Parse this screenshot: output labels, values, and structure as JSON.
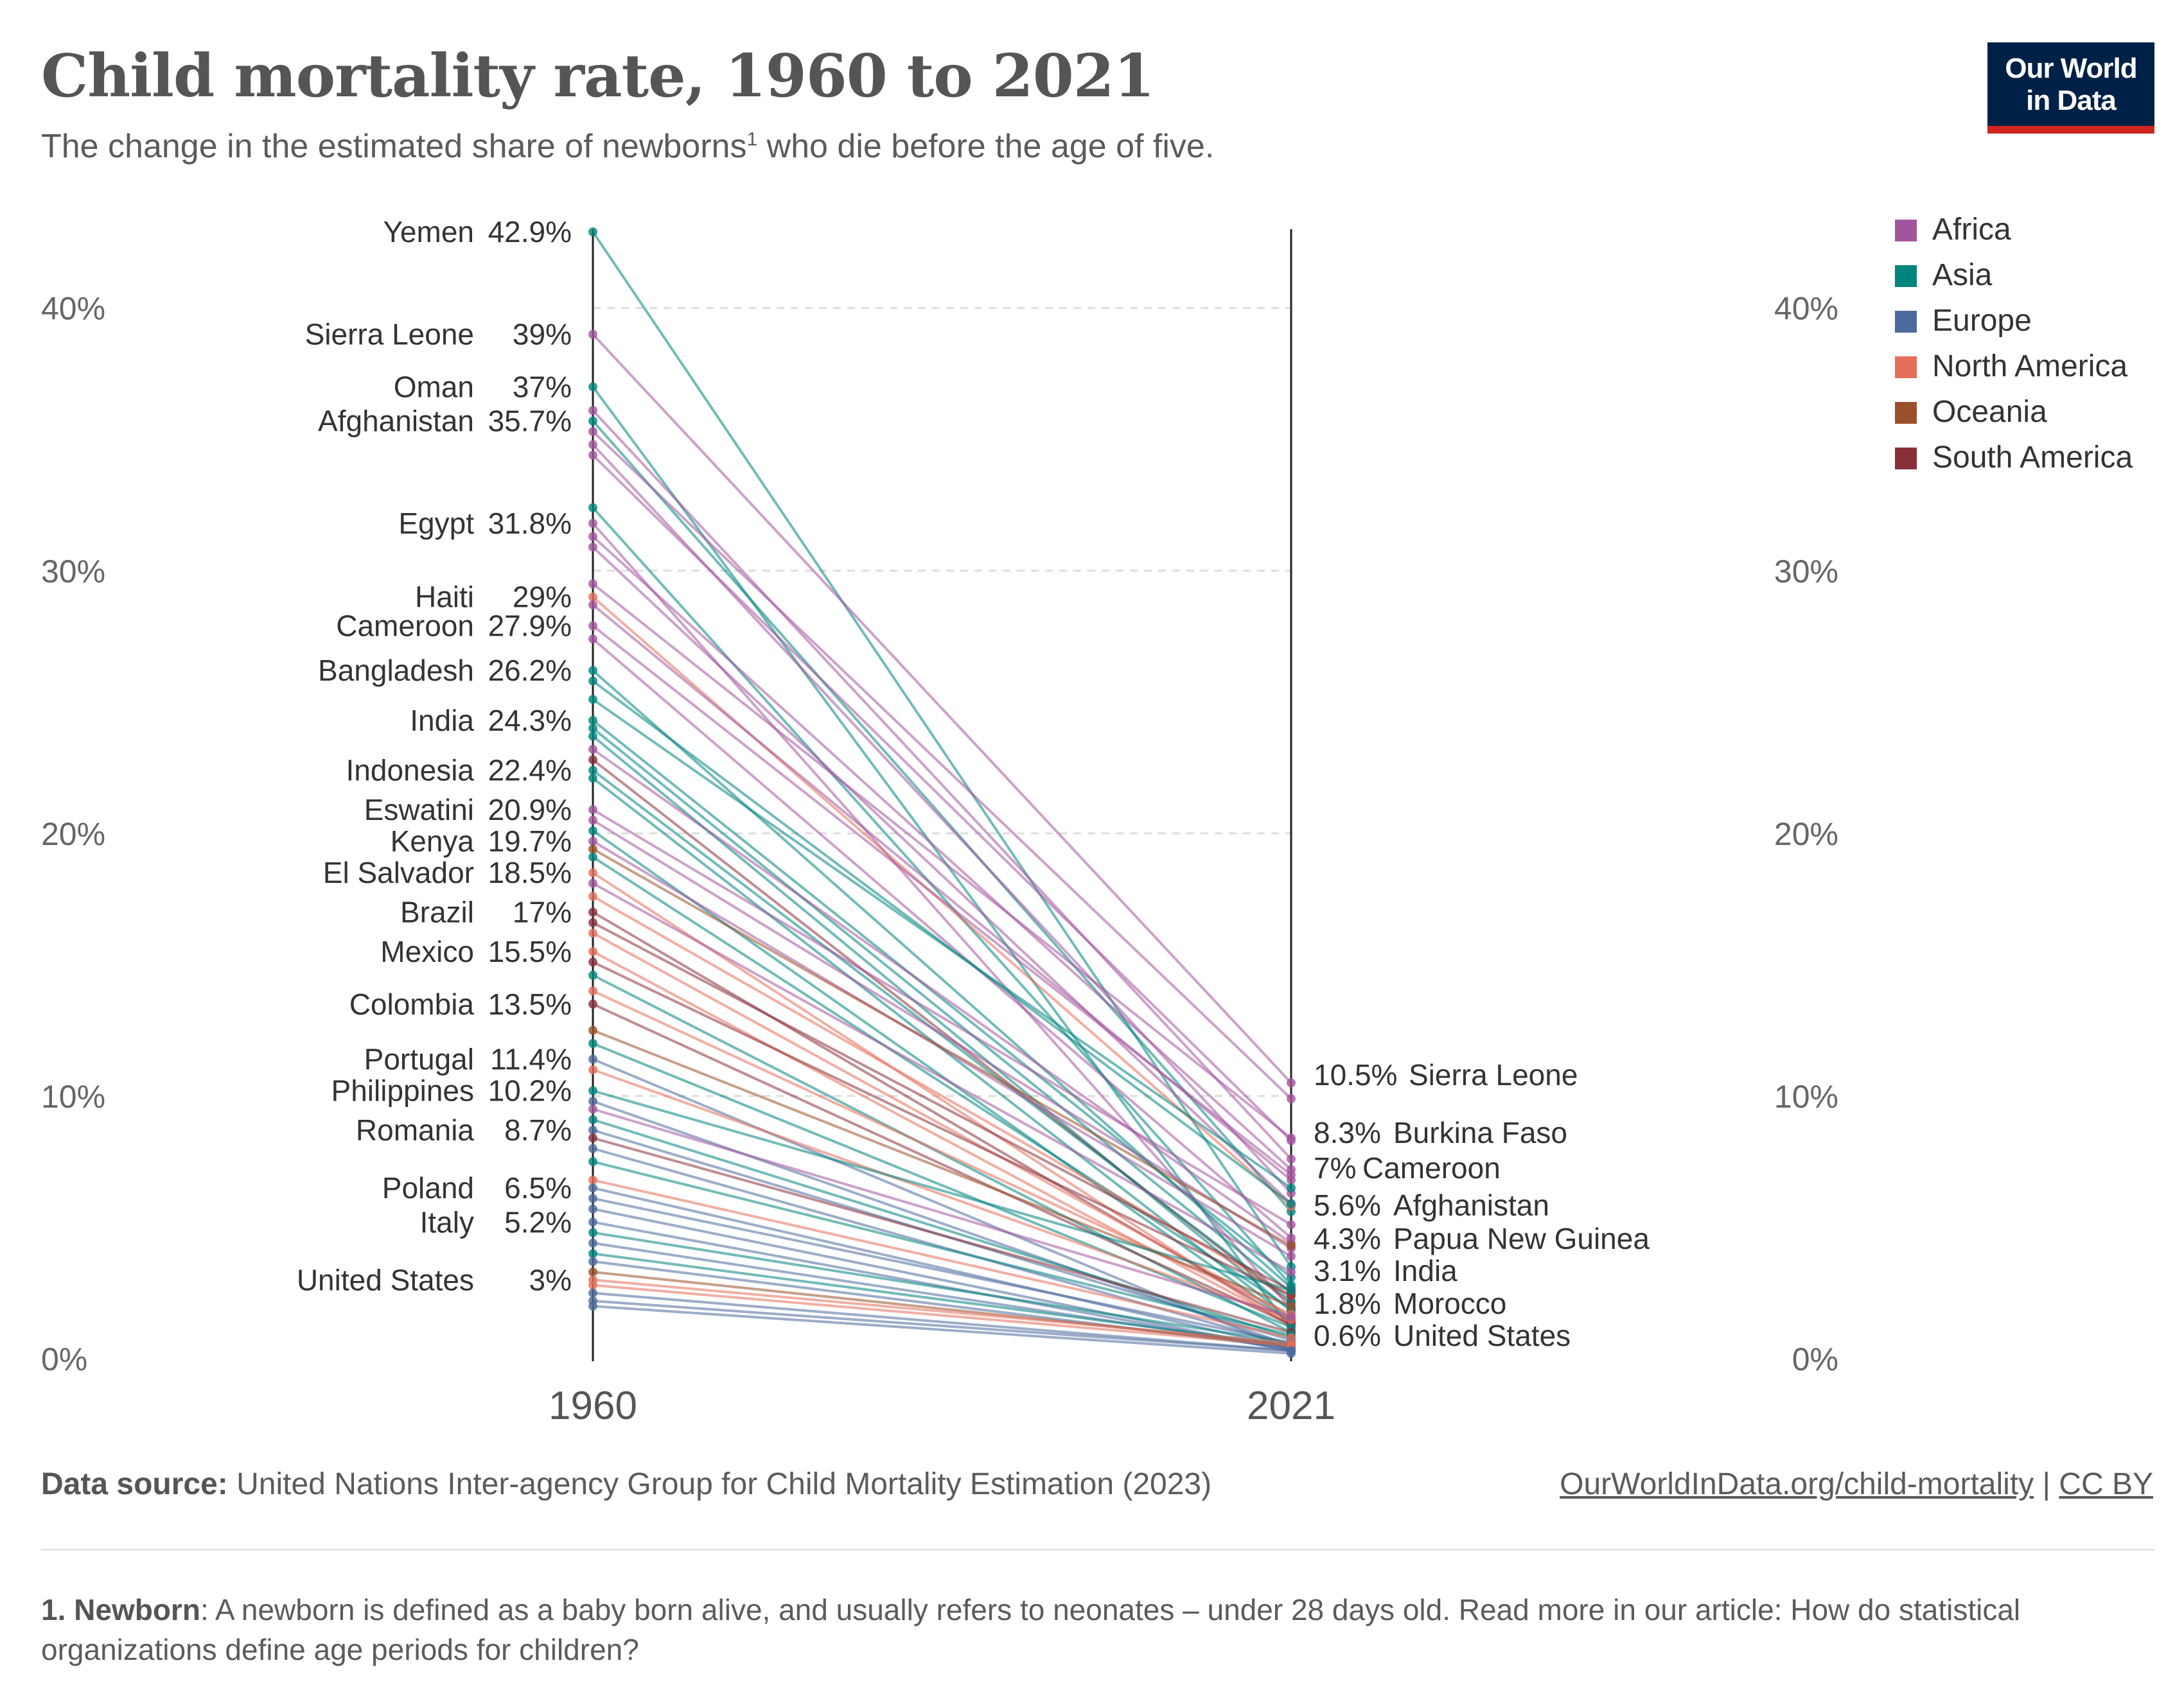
{
  "header": {
    "title": "Child mortality rate, 1960 to 2021",
    "subtitle_before": "The change in the estimated share of newborns",
    "subtitle_sup": "1",
    "subtitle_after": " who die before the age of five."
  },
  "logo": {
    "line1": "Our World",
    "line2": "in Data",
    "bg": "#002147",
    "accent": "#ce261e"
  },
  "legend": [
    {
      "name": "Africa",
      "color": "#a2559c"
    },
    {
      "name": "Asia",
      "color": "#00847e"
    },
    {
      "name": "Europe",
      "color": "#4c6a9c"
    },
    {
      "name": "North America",
      "color": "#e56e5a"
    },
    {
      "name": "Oceania",
      "color": "#9a5129"
    },
    {
      "name": "South America",
      "color": "#883039"
    }
  ],
  "chart_data": {
    "type": "slope",
    "x": [
      "1960",
      "2021"
    ],
    "ylim": [
      0,
      43
    ],
    "yticks": [
      0,
      10,
      20,
      30,
      40
    ],
    "ytick_labels": [
      "0%",
      "10%",
      "20%",
      "30%",
      "40%"
    ],
    "grid": true,
    "legend_position": "top-right",
    "labeled_1960": [
      {
        "name": "Yemen",
        "value": 42.9,
        "label": "42.9%",
        "region": "Asia"
      },
      {
        "name": "Sierra Leone",
        "value": 39,
        "label": "39%",
        "region": "Africa"
      },
      {
        "name": "Oman",
        "value": 37,
        "label": "37%",
        "region": "Asia"
      },
      {
        "name": "Afghanistan",
        "value": 35.7,
        "label": "35.7%",
        "region": "Asia"
      },
      {
        "name": "Egypt",
        "value": 31.8,
        "label": "31.8%",
        "region": "Africa"
      },
      {
        "name": "Haiti",
        "value": 29,
        "label": "29%",
        "region": "North America"
      },
      {
        "name": "Cameroon",
        "value": 27.9,
        "label": "27.9%",
        "region": "Africa"
      },
      {
        "name": "Bangladesh",
        "value": 26.2,
        "label": "26.2%",
        "region": "Asia"
      },
      {
        "name": "India",
        "value": 24.3,
        "label": "24.3%",
        "region": "Asia"
      },
      {
        "name": "Indonesia",
        "value": 22.4,
        "label": "22.4%",
        "region": "Asia"
      },
      {
        "name": "Eswatini",
        "value": 20.9,
        "label": "20.9%",
        "region": "Africa"
      },
      {
        "name": "Kenya",
        "value": 19.7,
        "label": "19.7%",
        "region": "Africa"
      },
      {
        "name": "El Salvador",
        "value": 18.5,
        "label": "18.5%",
        "region": "North America"
      },
      {
        "name": "Brazil",
        "value": 17,
        "label": "17%",
        "region": "South America"
      },
      {
        "name": "Mexico",
        "value": 15.5,
        "label": "15.5%",
        "region": "North America"
      },
      {
        "name": "Colombia",
        "value": 13.5,
        "label": "13.5%",
        "region": "South America"
      },
      {
        "name": "Portugal",
        "value": 11.4,
        "label": "11.4%",
        "region": "Europe"
      },
      {
        "name": "Philippines",
        "value": 10.2,
        "label": "10.2%",
        "region": "Asia"
      },
      {
        "name": "Romania",
        "value": 8.7,
        "label": "8.7%",
        "region": "Europe"
      },
      {
        "name": "Poland",
        "value": 6.5,
        "label": "6.5%",
        "region": "Europe"
      },
      {
        "name": "Italy",
        "value": 5.2,
        "label": "5.2%",
        "region": "Europe"
      },
      {
        "name": "United States",
        "value": 3,
        "label": "3%",
        "region": "North America"
      }
    ],
    "labeled_2021": [
      {
        "name": "Sierra Leone",
        "value": 10.5,
        "label": "10.5%",
        "region": "Africa"
      },
      {
        "name": "Burkina Faso",
        "value": 8.3,
        "label": "8.3%",
        "region": "Africa"
      },
      {
        "name": "Cameroon",
        "value": 7,
        "label": "7%",
        "region": "Africa"
      },
      {
        "name": "Afghanistan",
        "value": 5.6,
        "label": "5.6%",
        "region": "Asia"
      },
      {
        "name": "Papua New Guinea",
        "value": 4.3,
        "label": "4.3%",
        "region": "Oceania"
      },
      {
        "name": "India",
        "value": 3.1,
        "label": "3.1%",
        "region": "Asia"
      },
      {
        "name": "Morocco",
        "value": 1.8,
        "label": "1.8%",
        "region": "Africa"
      },
      {
        "name": "United States",
        "value": 0.6,
        "label": "0.6%",
        "region": "North America"
      }
    ],
    "series": [
      {
        "region": "Asia",
        "values": [
          42.9,
          3.5
        ]
      },
      {
        "region": "Africa",
        "values": [
          39,
          10.5
        ]
      },
      {
        "region": "Asia",
        "values": [
          37,
          1.1
        ]
      },
      {
        "region": "Asia",
        "values": [
          35.7,
          5.6
        ]
      },
      {
        "region": "Africa",
        "values": [
          36.1,
          7.6
        ]
      },
      {
        "region": "Africa",
        "values": [
          35.3,
          9.9
        ]
      },
      {
        "region": "Africa",
        "values": [
          34.8,
          6.3
        ]
      },
      {
        "region": "Africa",
        "values": [
          34.4,
          8.3
        ]
      },
      {
        "region": "Asia",
        "values": [
          32.4,
          2.8
        ]
      },
      {
        "region": "Africa",
        "values": [
          31.8,
          1.9
        ]
      },
      {
        "region": "Africa",
        "values": [
          31.3,
          7.2
        ]
      },
      {
        "region": "Africa",
        "values": [
          30.9,
          5.9
        ]
      },
      {
        "region": "Africa",
        "values": [
          29.5,
          8.4
        ]
      },
      {
        "region": "North America",
        "values": [
          29,
          5.8
        ]
      },
      {
        "region": "Africa",
        "values": [
          28.7,
          6.8
        ]
      },
      {
        "region": "Africa",
        "values": [
          27.9,
          7
        ]
      },
      {
        "region": "Africa",
        "values": [
          27.4,
          4.6
        ]
      },
      {
        "region": "Asia",
        "values": [
          26.2,
          2.7
        ]
      },
      {
        "region": "Asia",
        "values": [
          25.8,
          5.9
        ]
      },
      {
        "region": "Asia",
        "values": [
          25.1,
          6.5
        ]
      },
      {
        "region": "Asia",
        "values": [
          24.3,
          3.1
        ]
      },
      {
        "region": "Asia",
        "values": [
          24,
          2.5
        ]
      },
      {
        "region": "Asia",
        "values": [
          23.7,
          1.8
        ]
      },
      {
        "region": "Africa",
        "values": [
          23.2,
          4.4
        ]
      },
      {
        "region": "South America",
        "values": [
          22.8,
          2.1
        ]
      },
      {
        "region": "Asia",
        "values": [
          22.4,
          2.2
        ]
      },
      {
        "region": "Asia",
        "values": [
          22.1,
          1.5
        ]
      },
      {
        "region": "Africa",
        "values": [
          20.9,
          5.1
        ]
      },
      {
        "region": "Africa",
        "values": [
          20.5,
          4.2
        ]
      },
      {
        "region": "Asia",
        "values": [
          20.1,
          1.4
        ]
      },
      {
        "region": "Africa",
        "values": [
          19.7,
          3.9
        ]
      },
      {
        "region": "Oceania",
        "values": [
          19.4,
          4.3
        ]
      },
      {
        "region": "Asia",
        "values": [
          19.1,
          1.9
        ]
      },
      {
        "region": "North America",
        "values": [
          18.5,
          1.2
        ]
      },
      {
        "region": "Africa",
        "values": [
          18.1,
          3.3
        ]
      },
      {
        "region": "North America",
        "values": [
          17.6,
          2.4
        ]
      },
      {
        "region": "South America",
        "values": [
          17,
          1.4
        ]
      },
      {
        "region": "South America",
        "values": [
          16.6,
          2.6
        ]
      },
      {
        "region": "North America",
        "values": [
          16.2,
          1.6
        ]
      },
      {
        "region": "North America",
        "values": [
          15.5,
          1.3
        ]
      },
      {
        "region": "South America",
        "values": [
          15.1,
          2.4
        ]
      },
      {
        "region": "Asia",
        "values": [
          14.6,
          1.0
        ]
      },
      {
        "region": "North America",
        "values": [
          14.0,
          1.7
        ]
      },
      {
        "region": "South America",
        "values": [
          13.5,
          1.3
        ]
      },
      {
        "region": "Oceania",
        "values": [
          12.5,
          2.0
        ]
      },
      {
        "region": "Asia",
        "values": [
          12.0,
          1.2
        ]
      },
      {
        "region": "Europe",
        "values": [
          11.4,
          0.3
        ]
      },
      {
        "region": "North America",
        "values": [
          11.0,
          1.5
        ]
      },
      {
        "region": "Asia",
        "values": [
          10.2,
          2.6
        ]
      },
      {
        "region": "Europe",
        "values": [
          9.8,
          0.5
        ]
      },
      {
        "region": "Africa",
        "values": [
          9.5,
          1.6
        ]
      },
      {
        "region": "Asia",
        "values": [
          9.1,
          0.8
        ]
      },
      {
        "region": "Europe",
        "values": [
          8.7,
          0.7
        ]
      },
      {
        "region": "South America",
        "values": [
          8.4,
          1.0
        ]
      },
      {
        "region": "Europe",
        "values": [
          8.0,
          0.5
        ]
      },
      {
        "region": "Asia",
        "values": [
          7.5,
          0.9
        ]
      },
      {
        "region": "North America",
        "values": [
          6.8,
          0.8
        ]
      },
      {
        "region": "Europe",
        "values": [
          6.5,
          0.4
        ]
      },
      {
        "region": "Europe",
        "values": [
          6.1,
          0.6
        ]
      },
      {
        "region": "Europe",
        "values": [
          5.7,
          0.3
        ]
      },
      {
        "region": "Europe",
        "values": [
          5.2,
          0.3
        ]
      },
      {
        "region": "Asia",
        "values": [
          4.8,
          0.6
        ]
      },
      {
        "region": "Europe",
        "values": [
          4.4,
          0.4
        ]
      },
      {
        "region": "Asia",
        "values": [
          4.0,
          0.5
        ]
      },
      {
        "region": "Europe",
        "values": [
          3.7,
          0.4
        ]
      },
      {
        "region": "Oceania",
        "values": [
          3.3,
          0.5
        ]
      },
      {
        "region": "North America",
        "values": [
          3.0,
          0.6
        ]
      },
      {
        "region": "North America",
        "values": [
          2.8,
          0.5
        ]
      },
      {
        "region": "Europe",
        "values": [
          2.5,
          0.3
        ]
      },
      {
        "region": "Europe",
        "values": [
          2.2,
          0.3
        ]
      },
      {
        "region": "Europe",
        "values": [
          2.0,
          0.2
        ]
      }
    ]
  },
  "footer": {
    "source_label": "Data source:",
    "source_text": " United Nations Inter-agency Group for Child Mortality Estimation (2023)",
    "link": "OurWorldInData.org/child-mortality",
    "separator": " | ",
    "license": "CC BY",
    "footnote_label": "1. Newborn",
    "footnote_text": ": A newborn is defined as a baby born alive, and usually refers to neonates – under 28 days old. Read more in our article: How do statistical organizations define age periods for children?"
  }
}
